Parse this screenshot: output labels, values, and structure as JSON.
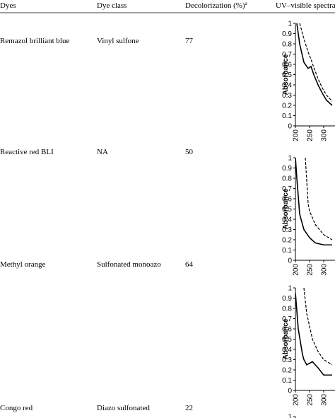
{
  "table": {
    "header": [
      "Dyes",
      "Dye class",
      "Decolorization (%)",
      "UV–visible spectra"
    ],
    "header_note": "a",
    "rows": [
      [
        "Remazol brilliant blue",
        "Vinyl sulfone",
        "77"
      ],
      [
        "Reactive red BLI",
        "NA",
        "50"
      ],
      [
        "Methyl orange",
        "Sulfonated monoazo",
        "64"
      ],
      [
        "Congo red",
        "Diazo sulfonated",
        "22"
      ]
    ]
  },
  "charts": [
    {
      "type": "line",
      "ylabel": "Absorbance",
      "xlim": [
        200,
        330
      ],
      "ylim": [
        0,
        1
      ],
      "yticks": [
        0,
        0.1,
        0.2,
        0.3,
        0.4,
        0.5,
        0.6,
        0.7,
        0.8,
        0.9,
        1
      ],
      "xticks": [
        200,
        250,
        300
      ],
      "x": [
        205,
        215,
        230,
        245,
        255,
        265,
        280,
        295,
        310,
        330
      ],
      "series": [
        {
          "color": "#000",
          "dash": false,
          "values": [
            1,
            0.8,
            0.62,
            0.56,
            0.58,
            0.5,
            0.4,
            0.32,
            0.25,
            0.2
          ]
        },
        {
          "color": "#000",
          "dash": true,
          "values": [
            null,
            1,
            0.85,
            0.72,
            0.65,
            0.57,
            0.46,
            0.37,
            0.3,
            0.24
          ]
        }
      ]
    },
    {
      "type": "line",
      "ylabel": "Absorbance",
      "xlim": [
        200,
        330
      ],
      "ylim": [
        0,
        1
      ],
      "yticks": [
        0,
        0.1,
        0.2,
        0.3,
        0.4,
        0.5,
        0.6,
        0.7,
        0.8,
        0.9,
        1
      ],
      "xticks": [
        200,
        250,
        300
      ],
      "x": [
        200,
        205,
        215,
        230,
        235,
        245,
        250,
        270,
        300,
        330
      ],
      "series": [
        {
          "color": "#000",
          "dash": false,
          "values": [
            1,
            0.8,
            0.45,
            0.3,
            0.28,
            0.24,
            0.22,
            0.17,
            0.15,
            0.15
          ]
        },
        {
          "color": "#000",
          "dash": true,
          "values": [
            null,
            null,
            null,
            null,
            1,
            0.55,
            0.48,
            0.35,
            0.25,
            0.2
          ]
        }
      ]
    },
    {
      "type": "line",
      "ylabel": "Absorbance",
      "xlim": [
        200,
        330
      ],
      "ylim": [
        0,
        1
      ],
      "yticks": [
        0,
        0.1,
        0.2,
        0.3,
        0.4,
        0.5,
        0.6,
        0.7,
        0.8,
        0.9,
        1
      ],
      "xticks": [
        200,
        250,
        300
      ],
      "x": [
        200,
        210,
        225,
        230,
        240,
        260,
        280,
        300,
        330
      ],
      "series": [
        {
          "color": "#000",
          "dash": false,
          "values": [
            0.95,
            0.6,
            0.35,
            0.3,
            0.25,
            0.28,
            0.22,
            0.15,
            0.15
          ]
        },
        {
          "color": "#000",
          "dash": true,
          "values": [
            null,
            null,
            null,
            1,
            0.75,
            0.5,
            0.38,
            0.3,
            0.25
          ]
        }
      ]
    },
    {
      "type": "line",
      "ylim": [
        0,
        1
      ],
      "yticks": [
        1
      ]
    }
  ]
}
